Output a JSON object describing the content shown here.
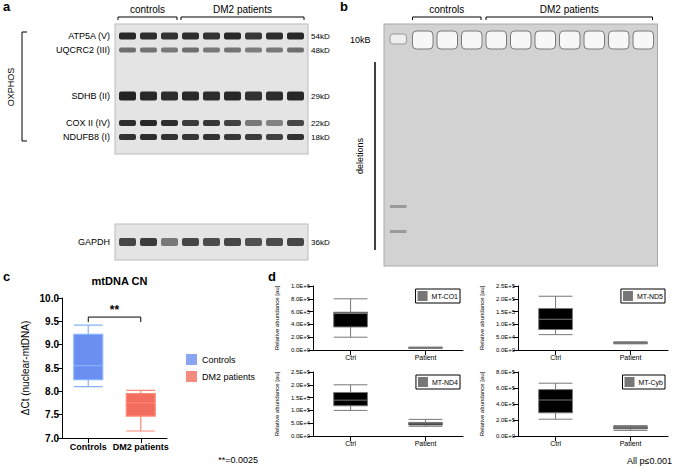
{
  "panels": {
    "a": {
      "label": "a",
      "groups": [
        "controls",
        "DM2 patients"
      ],
      "group_label": "OXPHOS",
      "bands": [
        {
          "name": "ATP5A (V)",
          "size": "54kD"
        },
        {
          "name": "UQCRC2 (III)",
          "size": "48kD"
        },
        {
          "name": "SDHB (II)",
          "size": "29kD"
        },
        {
          "name": "COX II (IV)",
          "size": "22kD"
        },
        {
          "name": "NDUFB8 (I)",
          "size": "18kD"
        }
      ],
      "loading_control": {
        "name": "GAPDH",
        "size": "36kD"
      }
    },
    "b": {
      "label": "b",
      "groups": [
        "controls",
        "DM2 patients"
      ],
      "marker": "10kB",
      "region": "deletions"
    },
    "c": {
      "label": "c",
      "note": "**=0.0025"
    },
    "d": {
      "label": "d",
      "note": "All p≤0.001"
    }
  },
  "chart_data": [
    {
      "type": "boxplot",
      "title": "mtDNA CN",
      "ylabel": "ΔCt (nuclear-mtDNA)",
      "categories": [
        "Controls",
        "DM2 patients"
      ],
      "series": [
        {
          "name": "Controls",
          "color": "#6b8ff0",
          "boxes": [
            {
              "min": 8.1,
              "q1": 8.25,
              "median": 8.55,
              "q3": 9.22,
              "max": 9.42
            },
            null
          ]
        },
        {
          "name": "DM2 patients",
          "color": "#f26d5e",
          "boxes": [
            null,
            {
              "min": 7.15,
              "q1": 7.47,
              "median": 7.75,
              "q3": 7.95,
              "max": 8.02
            }
          ]
        }
      ],
      "ylim": [
        7.0,
        10.0
      ],
      "yticks": [
        {
          "value": 7.0,
          "label": "7.0"
        },
        {
          "value": 7.5,
          "label": "7.5"
        },
        {
          "value": 8.0,
          "label": "8.0"
        },
        {
          "value": 8.5,
          "label": "8.5"
        },
        {
          "value": 9.0,
          "label": "9.0"
        },
        {
          "value": 9.5,
          "label": "9.5"
        },
        {
          "value": 10.0,
          "label": "10.0"
        }
      ],
      "annotation": "**",
      "legend": "right",
      "grid": false
    },
    {
      "type": "boxplot",
      "ylabel": "Relative abundance [au]",
      "categories": [
        "Ctrl",
        "Patient"
      ],
      "series": [
        {
          "name": "MT-CO1",
          "color": "#000000",
          "boxes": [
            {
              "min": 200000,
              "q1": 360000,
              "median": 570000,
              "q3": 590000,
              "max": 800000
            },
            {
              "min": 25000,
              "q1": 30000,
              "median": 35000,
              "q3": 40000,
              "max": 45000
            }
          ]
        }
      ],
      "ylim": [
        0,
        1000000
      ],
      "yticks": [
        {
          "value": 0,
          "label": "0.0E+0"
        },
        {
          "value": 200000,
          "label": "2.0E+5"
        },
        {
          "value": 400000,
          "label": "4.0E+5"
        },
        {
          "value": 600000,
          "label": "6.0E+5"
        },
        {
          "value": 800000,
          "label": "8.0E+5"
        },
        {
          "value": 1000000,
          "label": "1.0E+6"
        }
      ],
      "legend": "top-right",
      "grid": false
    },
    {
      "type": "boxplot",
      "ylabel": "Relative abundance [au]",
      "categories": [
        "Ctrl",
        "Patient"
      ],
      "series": [
        {
          "name": "MT-ND5",
          "color": "#000000",
          "boxes": [
            {
              "min": 60000,
              "q1": 80000,
              "median": 120000,
              "q3": 162000,
              "max": 210000
            },
            {
              "min": 24000,
              "q1": 26000,
              "median": 28000,
              "q3": 30000,
              "max": 32000
            }
          ]
        }
      ],
      "ylim": [
        0,
        250000
      ],
      "yticks": [
        {
          "value": 0,
          "label": "0.0E+0"
        },
        {
          "value": 50000,
          "label": "5.0E+4"
        },
        {
          "value": 100000,
          "label": "1.0E+5"
        },
        {
          "value": 150000,
          "label": "1.5E+5"
        },
        {
          "value": 200000,
          "label": "2.0E+5"
        },
        {
          "value": 250000,
          "label": "2.5E+5"
        }
      ],
      "legend": "top-right",
      "grid": false
    },
    {
      "type": "boxplot",
      "ylabel": "Relative abundance [au]",
      "categories": [
        "Ctrl",
        "Patient"
      ],
      "series": [
        {
          "name": "MT-ND4",
          "color": "#000000",
          "boxes": [
            {
              "min": 100000,
              "q1": 118000,
              "median": 140000,
              "q3": 170000,
              "max": 200000
            },
            {
              "min": 38000,
              "q1": 43000,
              "median": 48000,
              "q3": 53000,
              "max": 65000
            }
          ]
        }
      ],
      "ylim": [
        0,
        250000
      ],
      "yticks": [
        {
          "value": 0,
          "label": "0.0E+0"
        },
        {
          "value": 50000,
          "label": "5.0E+4"
        },
        {
          "value": 100000,
          "label": "1.0E+5"
        },
        {
          "value": 150000,
          "label": "1.5E+5"
        },
        {
          "value": 200000,
          "label": "2.0E+5"
        },
        {
          "value": 250000,
          "label": "2.5E+5"
        }
      ],
      "legend": "top-right",
      "grid": false
    },
    {
      "type": "boxplot",
      "ylabel": "Relative abundance [au]",
      "categories": [
        "Ctrl",
        "Patient"
      ],
      "series": [
        {
          "name": "MT-Cyb",
          "color": "#000000",
          "boxes": [
            {
              "min": 210000,
              "q1": 290000,
              "median": 450000,
              "q3": 580000,
              "max": 660000
            },
            {
              "min": 70000,
              "q1": 90000,
              "median": 105000,
              "q3": 120000,
              "max": 130000
            }
          ]
        }
      ],
      "ylim": [
        0,
        800000
      ],
      "yticks": [
        {
          "value": 0,
          "label": "0.0E+0"
        },
        {
          "value": 200000,
          "label": "2.0E+5"
        },
        {
          "value": 400000,
          "label": "4.0E+5"
        },
        {
          "value": 600000,
          "label": "6.0E+5"
        },
        {
          "value": 800000,
          "label": "8.0E+5"
        }
      ],
      "legend": "top-right",
      "grid": false
    }
  ]
}
